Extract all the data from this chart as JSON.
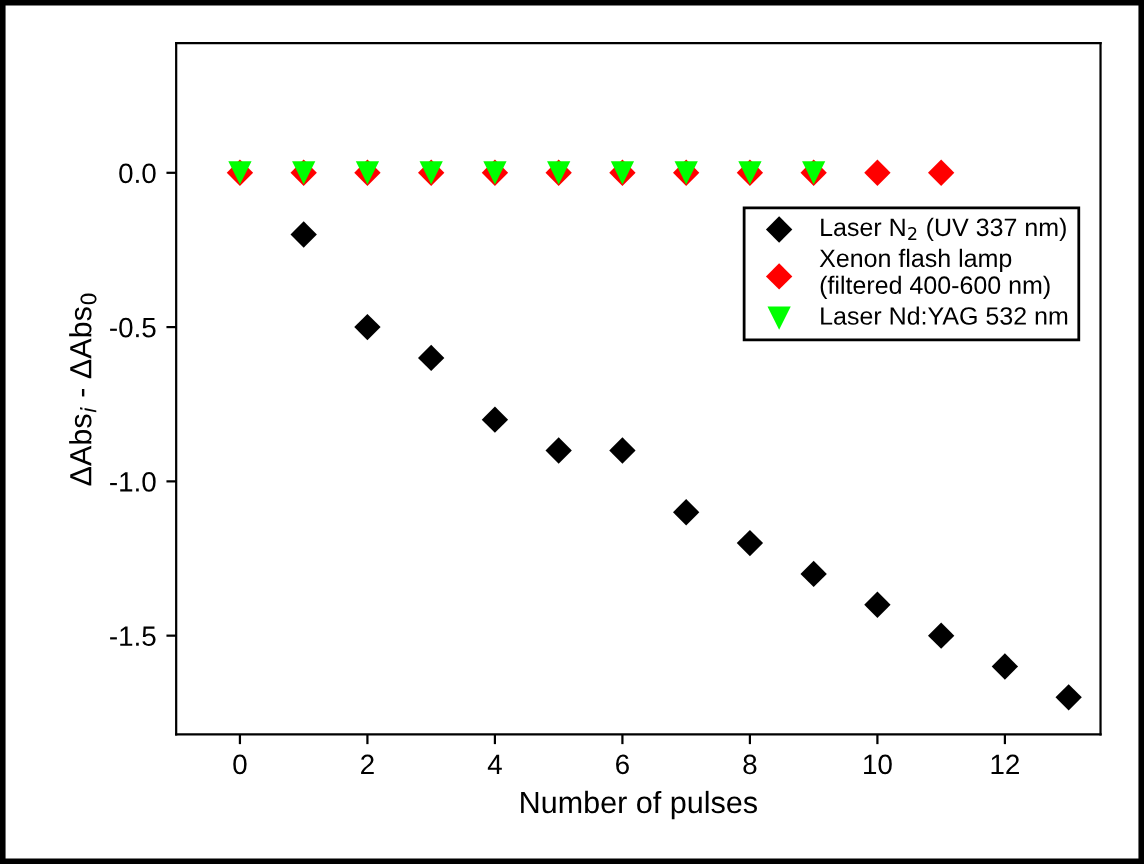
{
  "chart_data": {
    "type": "scatter",
    "xlabel": "Number of pulses",
    "ylabel": "ΔAbs$_{i}$ - ΔAbs$_{0}$",
    "xlim": [
      -1,
      13.5
    ],
    "xticks": [
      0,
      2,
      4,
      6,
      8,
      10,
      12
    ],
    "ylim": [
      -1.82,
      0.42
    ],
    "yticks": [
      {
        "value": 0,
        "label": "0.0"
      },
      -0.5,
      {
        "value": -1,
        "label": "-1.0"
      },
      -1.5
    ],
    "grid": false,
    "legend": "top right",
    "series": [
      {
        "name": "Laser N$_{2}$ (UV 337 nm)",
        "color": "#000000",
        "marker": "diamond",
        "x": [
          1,
          2,
          3,
          4,
          5,
          6,
          7,
          8,
          9,
          10,
          11,
          12,
          13
        ],
        "values": [
          -0.2,
          -0.5,
          -0.6,
          -0.8,
          -0.9,
          -0.9,
          -1.1,
          -1.2,
          -1.3,
          -1.4,
          -1.5,
          -1.6,
          -1.7
        ]
      },
      {
        "name": "Xenon flash lamp\n(filtered 400-600 nm)",
        "color": "#ff0000",
        "marker": "diamond",
        "x": [
          0,
          1,
          2,
          3,
          4,
          5,
          6,
          7,
          8,
          9,
          10,
          11
        ],
        "values": [
          0,
          0,
          0,
          0,
          0,
          0,
          0,
          0,
          0,
          0,
          0,
          0
        ]
      },
      {
        "name": "Laser Nd:YAG 532 nm",
        "color": "#00ff00",
        "marker": "triangle",
        "x": [
          0,
          1,
          2,
          3,
          4,
          5,
          6,
          7,
          8,
          9
        ],
        "values": [
          0,
          0,
          0,
          0,
          0,
          0,
          0,
          0,
          0,
          0
        ]
      }
    ]
  }
}
